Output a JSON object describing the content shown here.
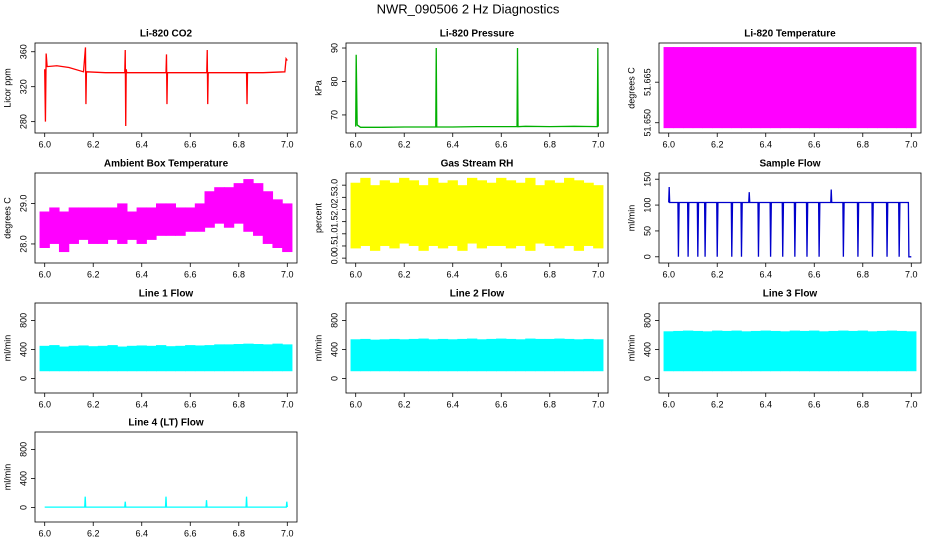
{
  "title": "NWR_090506  2 Hz Diagnostics",
  "chart_data": [
    {
      "type": "line",
      "title": "Li-820 CO2",
      "y_label": "Licor ppm",
      "color": "#ff0000",
      "xlim": [
        5.96,
        7.04
      ],
      "xticks": [
        {
          "value": 6,
          "label": "6.0"
        },
        6.2,
        6.4,
        6.6,
        6.8,
        {
          "value": 7,
          "label": "7.0"
        }
      ],
      "ylim": [
        267,
        370
      ],
      "yticks": [
        280,
        320,
        360
      ],
      "x": [
        6.0,
        6.003,
        6.006,
        6.01,
        6.05,
        6.1,
        6.16,
        6.168,
        6.17,
        6.172,
        6.174,
        6.25,
        6.33,
        6.332,
        6.334,
        6.336,
        6.338,
        6.42,
        6.5,
        6.502,
        6.504,
        6.506,
        6.58,
        6.668,
        6.67,
        6.672,
        6.674,
        6.75,
        6.832,
        6.834,
        6.836,
        6.9,
        6.99,
        6.995,
        7.0
      ],
      "values": [
        340,
        280,
        358,
        343,
        344,
        342,
        337,
        365,
        300,
        337,
        337,
        336,
        336,
        362,
        275,
        340,
        336,
        336,
        336,
        357,
        300,
        336,
        336,
        336,
        362,
        300,
        336,
        336,
        336,
        300,
        336,
        336,
        337,
        352,
        350
      ]
    },
    {
      "type": "line",
      "title": "Li-820 Pressure",
      "y_label": "kPa",
      "color": "#00b000",
      "xlim": [
        5.96,
        7.04
      ],
      "xticks": [
        {
          "value": 6,
          "label": "6.0"
        },
        6.2,
        6.4,
        6.6,
        6.8,
        {
          "value": 7,
          "label": "7.0"
        }
      ],
      "ylim": [
        64.6,
        91.5
      ],
      "yticks": [
        70,
        80,
        90
      ],
      "x": [
        6.0,
        6.002,
        6.006,
        6.02,
        6.1,
        6.2,
        6.33,
        6.332,
        6.334,
        6.4,
        6.5,
        6.6,
        6.665,
        6.667,
        6.669,
        6.7,
        6.8,
        6.9,
        6.996,
        6.998,
        7.0
      ],
      "values": [
        66.5,
        88,
        67,
        66.3,
        66.3,
        66.4,
        66.4,
        90,
        66.4,
        66.4,
        66.5,
        66.5,
        66.5,
        90,
        66.5,
        66.6,
        66.5,
        66.6,
        66.5,
        90,
        66.5
      ]
    },
    {
      "type": "band",
      "title": "Li-820 Temperature",
      "y_label": "degrees C",
      "color": "#ff00ff",
      "xlim": [
        5.96,
        7.04
      ],
      "xticks": [
        {
          "value": 6,
          "label": "6.0"
        },
        6.2,
        6.4,
        6.6,
        6.8,
        {
          "value": 7,
          "label": "7.0"
        }
      ],
      "ylim": [
        51.6462,
        51.6795
      ],
      "yticks": [
        {
          "value": 51.65,
          "label": "51.650"
        },
        {
          "value": 51.665,
          "label": "51.665"
        }
      ],
      "x": [
        6,
        6.04,
        6.08,
        6.12,
        6.16,
        6.2,
        6.24,
        6.28,
        6.32,
        6.36,
        6.4,
        6.44,
        6.48,
        6.52,
        6.56,
        6.6,
        6.64,
        6.68,
        6.72,
        6.76,
        6.8,
        6.84,
        6.88,
        6.92,
        6.96,
        7
      ],
      "low": [
        51.648,
        51.648,
        51.648,
        51.648,
        51.648,
        51.648,
        51.648,
        51.648,
        51.648,
        51.648,
        51.648,
        51.648,
        51.648,
        51.648,
        51.648,
        51.648,
        51.648,
        51.648,
        51.648,
        51.648,
        51.648,
        51.648,
        51.648,
        51.648,
        51.648,
        51.648
      ],
      "high": [
        51.678,
        51.678,
        51.678,
        51.678,
        51.678,
        51.678,
        51.678,
        51.678,
        51.678,
        51.678,
        51.678,
        51.678,
        51.678,
        51.678,
        51.678,
        51.678,
        51.678,
        51.678,
        51.678,
        51.678,
        51.678,
        51.678,
        51.678,
        51.678,
        51.678,
        51.678
      ]
    },
    {
      "type": "band",
      "title": "Ambient Box Temperature",
      "y_label": "degrees C",
      "color": "#ff00ff",
      "xlim": [
        5.96,
        7.04
      ],
      "xticks": [
        {
          "value": 6,
          "label": "6.0"
        },
        6.2,
        6.4,
        6.6,
        6.8,
        {
          "value": 7,
          "label": "7.0"
        }
      ],
      "ylim": [
        27.53,
        29.75
      ],
      "yticks": [
        {
          "value": 28,
          "label": "28.0"
        },
        {
          "value": 29,
          "label": "29.0"
        }
      ],
      "x": [
        6,
        6.04,
        6.08,
        6.12,
        6.16,
        6.2,
        6.24,
        6.28,
        6.32,
        6.36,
        6.4,
        6.44,
        6.48,
        6.52,
        6.56,
        6.6,
        6.64,
        6.68,
        6.72,
        6.76,
        6.8,
        6.84,
        6.88,
        6.92,
        6.96,
        7
      ],
      "low": [
        27.9,
        28.0,
        27.8,
        28.0,
        28.1,
        28.0,
        28.0,
        28.1,
        28.0,
        28.1,
        28.0,
        28.1,
        28.2,
        28.2,
        28.2,
        28.3,
        28.3,
        28.4,
        28.5,
        28.4,
        28.5,
        28.3,
        28.2,
        28.0,
        27.9,
        27.8
      ],
      "high": [
        28.8,
        28.9,
        28.8,
        28.9,
        28.9,
        28.9,
        28.9,
        28.9,
        29.0,
        28.8,
        28.9,
        28.9,
        29.0,
        29.0,
        28.9,
        28.9,
        29.0,
        29.3,
        29.4,
        29.4,
        29.5,
        29.6,
        29.5,
        29.3,
        29.1,
        29.0
      ]
    },
    {
      "type": "band",
      "title": "Gas Stream RH",
      "y_label": "percent",
      "color": "#ffff00",
      "xlim": [
        5.96,
        7.04
      ],
      "xticks": [
        {
          "value": 6,
          "label": "6.0"
        },
        6.2,
        6.4,
        6.6,
        6.8,
        {
          "value": 7,
          "label": "7.0"
        }
      ],
      "ylim": [
        -0.2,
        3.5
      ],
      "yticks": [
        {
          "value": 0,
          "label": "0.0"
        },
        0.5,
        {
          "value": 1,
          "label": "1.0"
        },
        1.5,
        {
          "value": 2,
          "label": "2.0"
        },
        2.5,
        {
          "value": 3,
          "label": "3.0"
        }
      ],
      "x": [
        6,
        6.04,
        6.08,
        6.12,
        6.16,
        6.2,
        6.24,
        6.28,
        6.32,
        6.36,
        6.4,
        6.44,
        6.48,
        6.52,
        6.56,
        6.6,
        6.64,
        6.68,
        6.72,
        6.76,
        6.8,
        6.84,
        6.88,
        6.92,
        6.96,
        7
      ],
      "low": [
        0.4,
        0.5,
        0.3,
        0.5,
        0.4,
        0.6,
        0.5,
        0.3,
        0.5,
        0.4,
        0.5,
        0.3,
        0.6,
        0.4,
        0.5,
        0.5,
        0.4,
        0.5,
        0.3,
        0.6,
        0.5,
        0.4,
        0.5,
        0.3,
        0.5,
        0.4
      ],
      "high": [
        3.1,
        3.3,
        3.0,
        3.2,
        3.1,
        3.3,
        3.2,
        3.0,
        3.3,
        3.1,
        3.2,
        3.0,
        3.3,
        3.2,
        3.1,
        3.3,
        3.2,
        3.1,
        3.3,
        3.0,
        3.2,
        3.1,
        3.3,
        3.2,
        3.1,
        3.0
      ]
    },
    {
      "type": "line",
      "title": "Sample Flow",
      "y_label": "ml/min",
      "color": "#0000cc",
      "xlim": [
        5.96,
        7.04
      ],
      "xticks": [
        {
          "value": 6,
          "label": "6.0"
        },
        6.2,
        6.4,
        6.6,
        6.8,
        {
          "value": 7,
          "label": "7.0"
        }
      ],
      "ylim": [
        -12,
        162
      ],
      "yticks": [
        0,
        50,
        100,
        150
      ],
      "x": [
        6.0,
        6.002,
        6.004,
        6.038,
        6.04,
        6.043,
        6.078,
        6.08,
        6.083,
        6.118,
        6.12,
        6.123,
        6.148,
        6.15,
        6.153,
        6.198,
        6.2,
        6.203,
        6.258,
        6.26,
        6.263,
        6.298,
        6.3,
        6.303,
        6.33,
        6.332,
        6.334,
        6.368,
        6.37,
        6.373,
        6.418,
        6.42,
        6.423,
        6.468,
        6.47,
        6.473,
        6.518,
        6.52,
        6.523,
        6.568,
        6.57,
        6.573,
        6.618,
        6.62,
        6.623,
        6.668,
        6.67,
        6.672,
        6.718,
        6.72,
        6.723,
        6.778,
        6.78,
        6.783,
        6.838,
        6.84,
        6.843,
        6.898,
        6.9,
        6.903,
        6.948,
        6.95,
        6.953,
        6.988,
        6.99,
        7.0
      ],
      "values": [
        105,
        135,
        105,
        105,
        0,
        105,
        105,
        0,
        105,
        105,
        0,
        105,
        105,
        0,
        105,
        105,
        0,
        105,
        105,
        0,
        105,
        105,
        0,
        105,
        105,
        125,
        105,
        105,
        0,
        105,
        105,
        0,
        105,
        105,
        0,
        105,
        105,
        0,
        105,
        105,
        0,
        105,
        105,
        0,
        105,
        105,
        130,
        105,
        105,
        0,
        105,
        105,
        0,
        105,
        105,
        0,
        105,
        105,
        0,
        105,
        105,
        0,
        105,
        105,
        0,
        0
      ]
    },
    {
      "type": "band",
      "title": "Line 1 Flow",
      "y_label": "ml/min",
      "color": "#00ffff",
      "xlim": [
        5.96,
        7.04
      ],
      "xticks": [
        {
          "value": 6,
          "label": "6.0"
        },
        6.2,
        6.4,
        6.6,
        6.8,
        {
          "value": 7,
          "label": "7.0"
        }
      ],
      "ylim": [
        -200,
        1040
      ],
      "yticks": [
        0,
        400,
        800
      ],
      "x": [
        6,
        6.04,
        6.08,
        6.12,
        6.16,
        6.2,
        6.24,
        6.28,
        6.32,
        6.36,
        6.4,
        6.44,
        6.48,
        6.52,
        6.56,
        6.6,
        6.64,
        6.68,
        6.72,
        6.76,
        6.8,
        6.84,
        6.88,
        6.92,
        6.96,
        7
      ],
      "low": [
        100,
        100,
        100,
        100,
        100,
        100,
        100,
        100,
        100,
        100,
        100,
        100,
        100,
        100,
        100,
        100,
        100,
        100,
        100,
        100,
        100,
        100,
        100,
        100,
        100,
        100
      ],
      "high": [
        450,
        460,
        440,
        450,
        455,
        445,
        450,
        460,
        440,
        450,
        455,
        450,
        460,
        445,
        450,
        460,
        455,
        460,
        470,
        470,
        475,
        480,
        475,
        470,
        480,
        470
      ]
    },
    {
      "type": "band",
      "title": "Line 2 Flow",
      "y_label": "ml/min",
      "color": "#00ffff",
      "xlim": [
        5.96,
        7.04
      ],
      "xticks": [
        {
          "value": 6,
          "label": "6.0"
        },
        6.2,
        6.4,
        6.6,
        6.8,
        {
          "value": 7,
          "label": "7.0"
        }
      ],
      "ylim": [
        -200,
        1040
      ],
      "yticks": [
        0,
        400,
        800
      ],
      "x": [
        6,
        6.04,
        6.08,
        6.12,
        6.16,
        6.2,
        6.24,
        6.28,
        6.32,
        6.36,
        6.4,
        6.44,
        6.48,
        6.52,
        6.56,
        6.6,
        6.64,
        6.68,
        6.72,
        6.76,
        6.8,
        6.84,
        6.88,
        6.92,
        6.96,
        7
      ],
      "low": [
        100,
        100,
        100,
        100,
        100,
        100,
        100,
        100,
        100,
        100,
        100,
        100,
        100,
        100,
        100,
        100,
        100,
        100,
        100,
        100,
        100,
        100,
        100,
        100,
        100,
        100
      ],
      "high": [
        540,
        545,
        535,
        540,
        545,
        540,
        545,
        550,
        540,
        545,
        540,
        545,
        550,
        540,
        545,
        550,
        545,
        540,
        550,
        545,
        545,
        550,
        545,
        540,
        545,
        540
      ]
    },
    {
      "type": "band",
      "title": "Line 3 Flow",
      "y_label": "ml/min",
      "color": "#00ffff",
      "xlim": [
        5.96,
        7.04
      ],
      "xticks": [
        {
          "value": 6,
          "label": "6.0"
        },
        6.2,
        6.4,
        6.6,
        6.8,
        {
          "value": 7,
          "label": "7.0"
        }
      ],
      "ylim": [
        -200,
        1040
      ],
      "yticks": [
        0,
        400,
        800
      ],
      "x": [
        6,
        6.04,
        6.08,
        6.12,
        6.16,
        6.2,
        6.24,
        6.28,
        6.32,
        6.36,
        6.4,
        6.44,
        6.48,
        6.52,
        6.56,
        6.6,
        6.64,
        6.68,
        6.72,
        6.76,
        6.8,
        6.84,
        6.88,
        6.92,
        6.96,
        7
      ],
      "low": [
        100,
        100,
        100,
        100,
        100,
        100,
        100,
        100,
        100,
        100,
        100,
        100,
        100,
        100,
        100,
        100,
        100,
        100,
        100,
        100,
        100,
        100,
        100,
        100,
        100,
        100
      ],
      "high": [
        650,
        655,
        660,
        655,
        650,
        660,
        655,
        660,
        650,
        655,
        660,
        655,
        650,
        660,
        655,
        660,
        650,
        655,
        660,
        655,
        660,
        650,
        655,
        660,
        655,
        650
      ]
    },
    {
      "type": "line",
      "title": "Line 4 (LT) Flow",
      "y_label": "ml/min",
      "color": "#00ffff",
      "xlim": [
        5.96,
        7.04
      ],
      "xticks": [
        {
          "value": 6,
          "label": "6.0"
        },
        6.2,
        6.4,
        6.6,
        6.8,
        {
          "value": 7,
          "label": "7.0"
        }
      ],
      "ylim": [
        -200,
        1040
      ],
      "yticks": [
        0,
        400,
        800
      ],
      "x": [
        6.0,
        6.165,
        6.167,
        6.169,
        6.33,
        6.332,
        6.334,
        6.498,
        6.5,
        6.502,
        6.665,
        6.667,
        6.669,
        6.83,
        6.832,
        6.834,
        6.996,
        6.998,
        7.0
      ],
      "values": [
        5,
        5,
        150,
        5,
        5,
        80,
        5,
        5,
        150,
        5,
        5,
        100,
        5,
        5,
        150,
        5,
        5,
        80,
        5
      ]
    }
  ]
}
